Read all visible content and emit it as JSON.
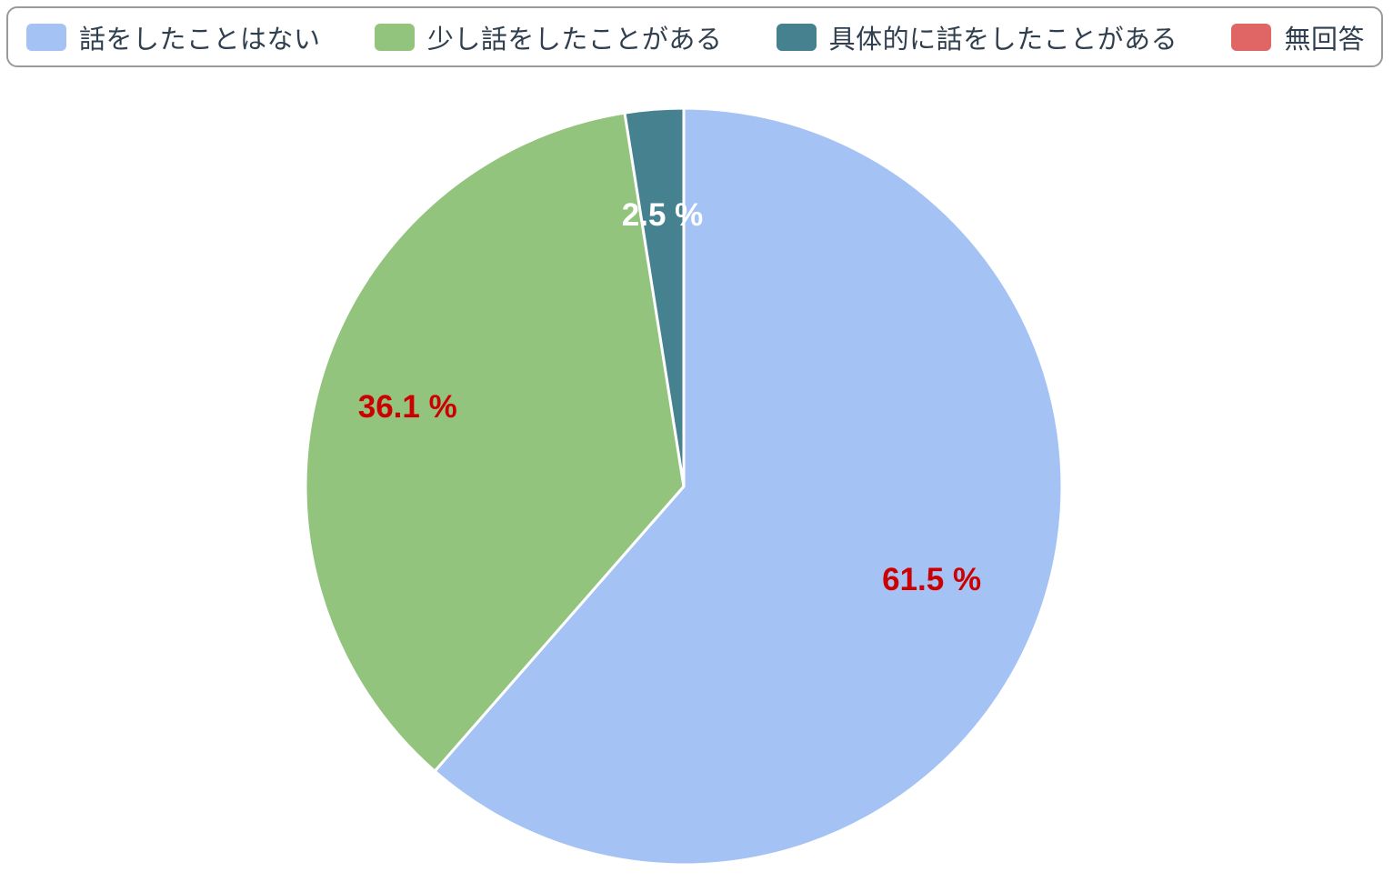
{
  "chart_data": {
    "type": "pie",
    "categories": [
      "話をしたことはない",
      "少し話をしたことがある",
      "具体的に話をしたことがある",
      "無回答"
    ],
    "values": [
      61.5,
      36.1,
      2.5,
      0
    ],
    "labels": [
      "61.5 %",
      "36.1 %",
      "2.5 %",
      ""
    ],
    "colors": [
      "#a4c2f4",
      "#93c47d",
      "#45818e",
      "#e06666"
    ],
    "label_colors": [
      "#cc0000",
      "#cc0000",
      "#ffffff",
      "#cc0000"
    ],
    "title": "",
    "legend_position": "top",
    "start_angle": "12 o'clock",
    "direction": "clockwise"
  }
}
